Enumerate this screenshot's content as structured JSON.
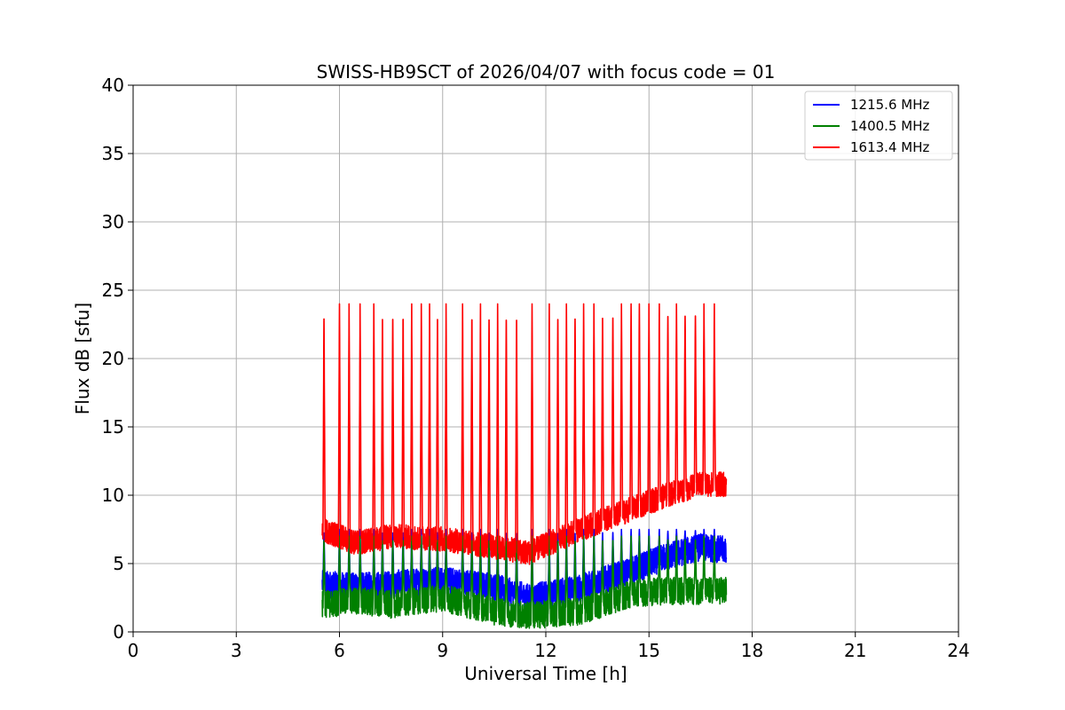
{
  "chart_data": {
    "type": "line",
    "title": "SWISS-HB9SCT of 2026/04/07 with focus code = 01",
    "xlabel": "Universal Time [h]",
    "ylabel": "Flux dB [sfu]",
    "xlim": [
      0,
      24
    ],
    "ylim": [
      0,
      40
    ],
    "xticks": [
      0,
      3,
      6,
      9,
      12,
      15,
      18,
      21,
      24
    ],
    "yticks": [
      0,
      5,
      10,
      15,
      20,
      25,
      30,
      35,
      40
    ],
    "grid": true,
    "legend_position": "top-right",
    "observation_window_h": [
      5.5,
      17.25
    ],
    "spike_times_h": [
      5.55,
      6.0,
      6.28,
      6.6,
      7.0,
      7.25,
      7.55,
      7.85,
      8.1,
      8.38,
      8.62,
      8.85,
      9.1,
      9.58,
      9.85,
      10.1,
      10.35,
      10.6,
      10.85,
      11.15,
      11.6,
      12.1,
      12.35,
      12.6,
      12.85,
      13.1,
      13.4,
      13.65,
      13.95,
      14.2,
      14.48,
      14.72,
      15.0,
      15.3,
      15.55,
      15.8,
      16.05,
      16.35,
      16.6,
      16.9
    ],
    "series": [
      {
        "name": "1215.6 MHz",
        "color": "#0000ff",
        "baseline_x": [
          5.5,
          6.5,
          7.5,
          9.0,
          10.5,
          11.5,
          13.0,
          14.5,
          15.5,
          16.5,
          17.25
        ],
        "baseline_y": [
          3.5,
          3.3,
          3.5,
          3.8,
          3.3,
          2.5,
          3.2,
          4.5,
          5.5,
          6.2,
          6.0
        ],
        "spike_peak": 7.5
      },
      {
        "name": "1400.5 MHz",
        "color": "#008000",
        "baseline_x": [
          5.5,
          6.5,
          7.5,
          9.0,
          10.5,
          11.5,
          13.0,
          14.5,
          15.5,
          16.5,
          17.25
        ],
        "baseline_y": [
          2.0,
          2.3,
          2.0,
          2.5,
          1.5,
          1.2,
          1.5,
          2.8,
          3.0,
          3.0,
          3.0
        ],
        "spike_peak": 7.0
      },
      {
        "name": "1613.4 MHz",
        "color": "#ff0000",
        "baseline_x": [
          5.5,
          6.5,
          7.5,
          9.0,
          10.5,
          11.5,
          13.0,
          14.5,
          15.5,
          16.5,
          17.25
        ],
        "baseline_y": [
          7.5,
          6.5,
          7.0,
          6.8,
          6.2,
          5.8,
          7.5,
          9.0,
          10.0,
          10.8,
          10.8
        ],
        "spike_peak": 24.0
      }
    ]
  }
}
